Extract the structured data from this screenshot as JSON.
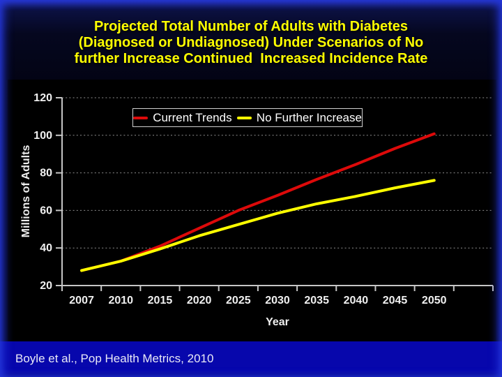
{
  "slide": {
    "title": "Projected Total Number of Adults with Diabetes\n(Diagnosed or Undiagnosed) Under Scenarios of No\nfurther Increase Continued  Increased Incidence Rate",
    "source": "Boyle et al., Pop Health Metrics, 2010"
  },
  "colors": {
    "title_text": "#FFFF00",
    "chart_background": "#000000",
    "axis_line": "#C6C6C6",
    "gridline": "#8F8F8F",
    "tick_text": "#F0F0F0",
    "legend_text": "#FFFFFF",
    "legend_border": "#CFCFCF",
    "source_bar": "#0707AC",
    "edge_glow": "#2436D8",
    "current_trends_line": "#DD0A0A",
    "no_further_increase_line": "#FFFF00"
  },
  "chart_data": {
    "type": "line",
    "title": "",
    "xlabel": "Year",
    "ylabel": "Millions of Adults",
    "x": [
      "2007",
      "2010",
      "2015",
      "2020",
      "2025",
      "2030",
      "2035",
      "2040",
      "2045",
      "2050"
    ],
    "ylim": [
      20,
      120
    ],
    "yticks": [
      20,
      40,
      60,
      80,
      100,
      120
    ],
    "grid": "horizontal-dotted",
    "legend_position": "top-center-inside",
    "series": [
      {
        "name": "Current Trends",
        "color": "#DD0A0A",
        "values": [
          28,
          33,
          41,
          50.5,
          60,
          68,
          76.5,
          84.5,
          93,
          100.8
        ]
      },
      {
        "name": "No Further Increase",
        "color": "#FFFF00",
        "values": [
          28,
          33,
          39.5,
          46.5,
          52.5,
          58.5,
          63.5,
          67.5,
          72,
          76
        ]
      }
    ]
  }
}
